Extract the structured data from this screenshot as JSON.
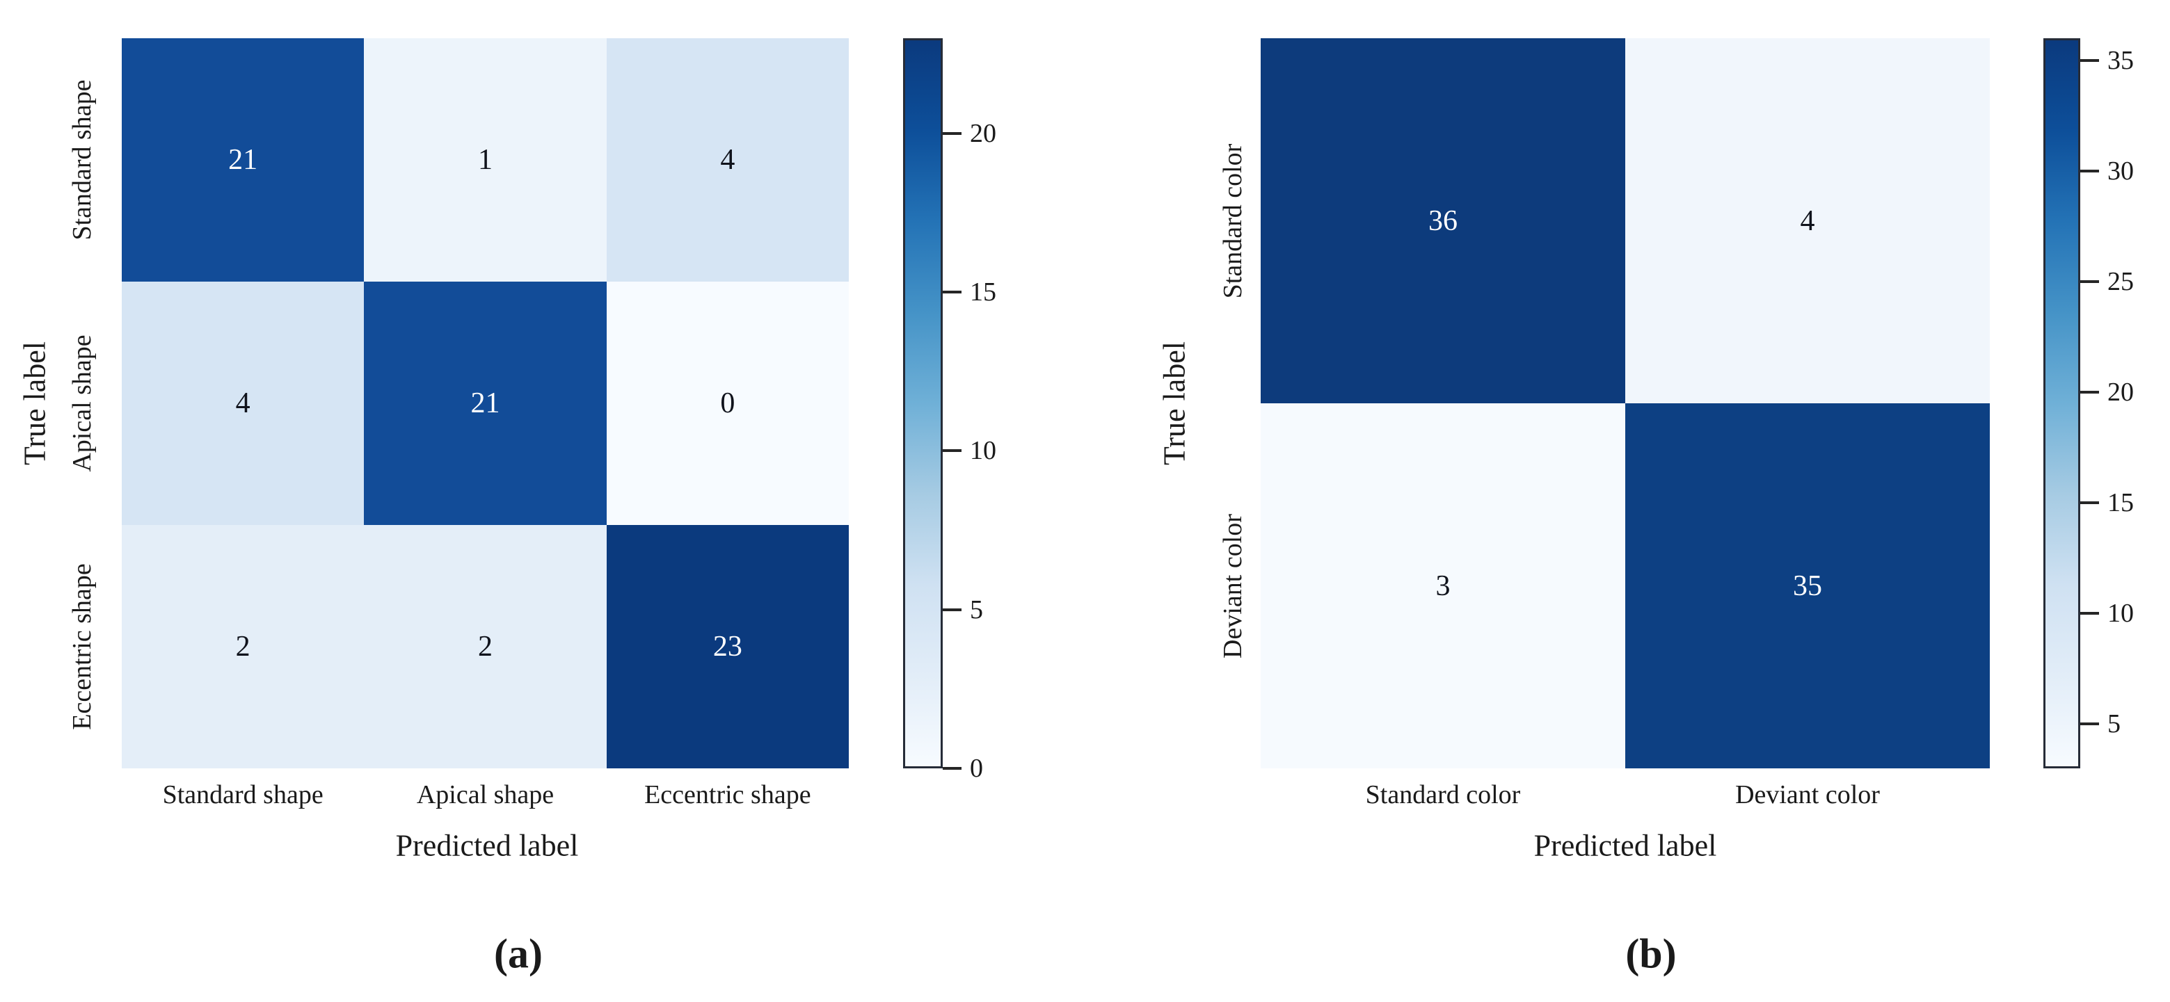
{
  "page": {
    "background": "#ffffff",
    "text_color": "#1a1a1a"
  },
  "captions": {
    "a": "(a)",
    "b": "(b)"
  },
  "chart_data": [
    {
      "type": "heatmap",
      "subtype": "confusion-matrix",
      "caption": "(a)",
      "xlabel": "Predicted label",
      "ylabel": "True label",
      "x_ticklabels": [
        "Standard shape",
        "Apical shape",
        "Eccentric shape"
      ],
      "y_ticklabels": [
        "Standard shape",
        "Apical shape",
        "Eccentric shape"
      ],
      "matrix": [
        [
          21,
          1,
          4
        ],
        [
          4,
          21,
          0
        ],
        [
          2,
          2,
          23
        ]
      ],
      "cell_colors": [
        [
          "#124c98",
          "#edf4fb",
          "#d6e5f4"
        ],
        [
          "#d6e5f4",
          "#124c98",
          "#f7fbff"
        ],
        [
          "#e4eef8",
          "#e4eef8",
          "#0b3a7e"
        ]
      ],
      "cell_text_colors": [
        [
          "#ffffff",
          "#10131c",
          "#10131c"
        ],
        [
          "#10131c",
          "#ffffff",
          "#10131c"
        ],
        [
          "#10131c",
          "#10131c",
          "#ffffff"
        ]
      ],
      "grid": false,
      "legend_position": "right",
      "colorbar": {
        "vmin": 0,
        "vmax": 23,
        "ticks": [
          0,
          5,
          10,
          15,
          20
        ],
        "stops": [
          "#f7fbff",
          "#e2edf8",
          "#cfe1f2",
          "#a6cbe3",
          "#6fb0d7",
          "#4593c7",
          "#2473b6",
          "#0d4f9a",
          "#0b3a7e"
        ]
      }
    },
    {
      "type": "heatmap",
      "subtype": "confusion-matrix",
      "caption": "(b)",
      "xlabel": "Predicted label",
      "ylabel": "True label",
      "x_ticklabels": [
        "Standard color",
        "Deviant color"
      ],
      "y_ticklabels": [
        "Standard color",
        "Deviant color"
      ],
      "matrix": [
        [
          36,
          4
        ],
        [
          3,
          35
        ]
      ],
      "cell_colors": [
        [
          "#0d3b7c",
          "#f1f6fc"
        ],
        [
          "#f6fafe",
          "#0d4083"
        ]
      ],
      "cell_text_colors": [
        [
          "#ffffff",
          "#10131c"
        ],
        [
          "#10131c",
          "#ffffff"
        ]
      ],
      "grid": false,
      "legend_position": "right",
      "colorbar": {
        "vmin": 3,
        "vmax": 36,
        "ticks": [
          5,
          10,
          15,
          20,
          25,
          30,
          35
        ],
        "stops": [
          "#f7fbff",
          "#e2edf8",
          "#cfe1f2",
          "#a6cbe3",
          "#6fb0d7",
          "#4593c7",
          "#2473b6",
          "#0d4f9a",
          "#0b3a7e"
        ]
      }
    }
  ]
}
